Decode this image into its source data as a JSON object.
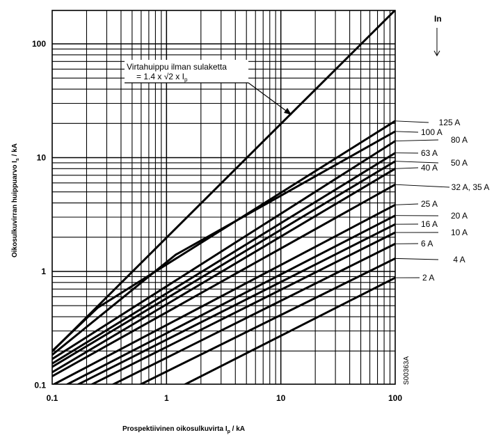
{
  "chart_data": {
    "type": "line",
    "scale": {
      "x": "log",
      "y": "log"
    },
    "grid": true,
    "xlim": [
      0.1,
      100
    ],
    "ylim": [
      0.1,
      200
    ],
    "x_ticks": [
      "0.1",
      "1",
      "10",
      "100"
    ],
    "y_ticks": [
      "0.1",
      "1",
      "10",
      "100"
    ],
    "xlabel": "Prospektiivinen oikosulkuvirta I",
    "xlabel_sub": "p",
    "xlabel_unit": " / kA",
    "ylabel": "Oikosulkuvirran huippuarvo   I",
    "ylabel_sub": "s",
    "ylabel_unit": " / kA",
    "legend_title": "In",
    "figure_code": "S00363A",
    "annotation": {
      "line1": "Virtahuippu ilman sulaketta",
      "line2": "= 1.4 x √2 x I",
      "line2_sub": "p",
      "x": 11.8,
      "y": 23
    },
    "reference_line": {
      "name": "Virtahuippu ilman sulaketta",
      "slope": 1.98,
      "x": [
        0.1,
        100
      ],
      "y": [
        0.198,
        198
      ]
    },
    "series": [
      {
        "name": "125 A",
        "x": [
          0.1,
          0.25,
          100
        ],
        "y": [
          0.2,
          0.48,
          21
        ]
      },
      {
        "name": "100 A",
        "x": [
          0.1,
          1.2,
          100
        ],
        "y": [
          0.185,
          1.4,
          17
        ]
      },
      {
        "name": "80 A",
        "x": [
          0.1,
          100
        ],
        "y": [
          0.17,
          14
        ]
      },
      {
        "name": "63 A",
        "x": [
          0.1,
          100
        ],
        "y": [
          0.155,
          11
        ]
      },
      {
        "name": "50 A",
        "x": [
          0.1,
          100
        ],
        "y": [
          0.145,
          9.3
        ]
      },
      {
        "name": "40 A",
        "x": [
          0.1,
          100
        ],
        "y": [
          0.13,
          8
        ]
      },
      {
        "name": "32 A, 35 A",
        "x": [
          0.1,
          100
        ],
        "y": [
          0.12,
          5.8
        ]
      },
      {
        "name": "25 A",
        "x": [
          0.1,
          100
        ],
        "y": [
          0.1,
          3.85
        ]
      },
      {
        "name": "20 A",
        "x": [
          0.1,
          100
        ],
        "y": [
          0.087,
          3.1
        ]
      },
      {
        "name": "16 A",
        "x": [
          0.1,
          100
        ],
        "y": [
          0.078,
          2.6
        ]
      },
      {
        "name": "10 A",
        "x": [
          0.1,
          100
        ],
        "y": [
          0.068,
          2.2
        ]
      },
      {
        "name": "6 A",
        "x": [
          0.1,
          100
        ],
        "y": [
          0.055,
          1.75
        ]
      },
      {
        "name": "4 A",
        "x": [
          0.1,
          100
        ],
        "y": [
          0.042,
          1.3
        ]
      },
      {
        "name": "2 A",
        "x": [
          0.1,
          100
        ],
        "y": [
          0.026,
          0.88
        ]
      }
    ]
  }
}
